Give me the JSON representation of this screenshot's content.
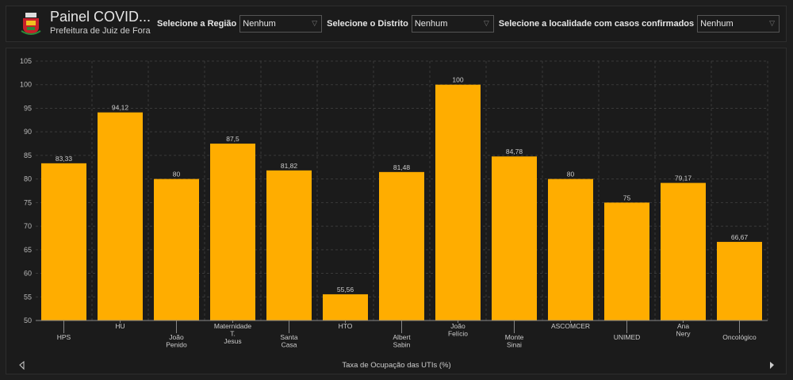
{
  "header": {
    "title": "Painel COVID...",
    "subtitle": "Prefeitura de Juiz de Fora",
    "filters": [
      {
        "label": "Selecione a Região",
        "value": "Nenhum"
      },
      {
        "label": "Selecione o Distrito",
        "value": "Nenhum"
      },
      {
        "label": "Selecione a localidade com casos confirmados",
        "value": "Nenhum"
      }
    ]
  },
  "chart_data": {
    "type": "bar",
    "xlabel": "Taxa de Ocupação das UTIs (%)",
    "ylabel": "",
    "ylim": [
      50,
      105
    ],
    "yticks": [
      50,
      55,
      60,
      65,
      70,
      75,
      80,
      85,
      90,
      95,
      100,
      105
    ],
    "grid": true,
    "bar_color": "#ffad00",
    "categories": [
      "HPS",
      "HU",
      "João Penido",
      "Maternidade T. Jesus",
      "Santa Casa",
      "HTO",
      "Albert Sabin",
      "João Felício",
      "Monte Sinai",
      "ASCOMCER",
      "UNIMED",
      "Ana Nery",
      "Oncológico"
    ],
    "category_lines": [
      [
        "HPS"
      ],
      [
        "HU"
      ],
      [
        "João",
        "Penido"
      ],
      [
        "Maternidade",
        "T.",
        "Jesus"
      ],
      [
        "Santa",
        "Casa"
      ],
      [
        "HTO"
      ],
      [
        "Albert",
        "Sabin"
      ],
      [
        "João",
        "Felício"
      ],
      [
        "Monte",
        "Sinai"
      ],
      [
        "ASCOMCER"
      ],
      [
        "UNIMED"
      ],
      [
        "Ana",
        "Nery"
      ],
      [
        "Oncológico"
      ]
    ],
    "values": [
      83.33,
      94.12,
      80,
      87.5,
      81.82,
      55.56,
      81.48,
      100,
      84.78,
      80,
      75,
      79.17,
      66.67
    ],
    "value_labels": [
      "83,33",
      "94,12",
      "80",
      "87,5",
      "81,82",
      "55,56",
      "81,48",
      "100",
      "84,78",
      "80",
      "75",
      "79,17",
      "66,67"
    ]
  }
}
